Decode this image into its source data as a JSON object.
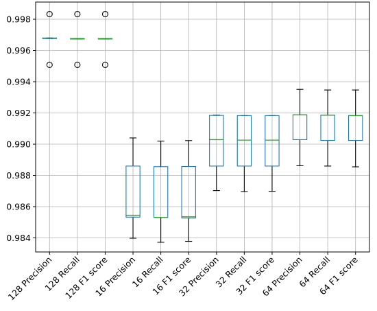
{
  "chart_data": {
    "type": "boxplot",
    "grid": true,
    "ylim": [
      0.9831,
      0.9991
    ],
    "yticks": [
      0.984,
      0.986,
      0.988,
      0.99,
      0.992,
      0.994,
      0.996,
      0.998
    ],
    "ytick_labels": [
      "0.984",
      "0.986",
      "0.988",
      "0.990",
      "0.992",
      "0.994",
      "0.996",
      "0.998"
    ],
    "categories": [
      "128 Precision",
      "128 Recall",
      "128 F1 score",
      "16 Precision",
      "16 Recall",
      "16 F1 score",
      "32 Precision",
      "32 Recall",
      "32 F1 score",
      "64 Precision",
      "64 Recall",
      "64 F1 score"
    ],
    "boxes": [
      {
        "whislo": 0.99676,
        "q1": 0.99676,
        "med": 0.99678,
        "q3": 0.9968,
        "whishi": 0.9968,
        "fliers": [
          0.99833,
          0.99508
        ]
      },
      {
        "whislo": 0.99673,
        "q1": 0.99673,
        "med": 0.99675,
        "q3": 0.99677,
        "whishi": 0.99677,
        "fliers": [
          0.99833,
          0.99508
        ]
      },
      {
        "whislo": 0.99673,
        "q1": 0.99673,
        "med": 0.99675,
        "q3": 0.99677,
        "whishi": 0.99677,
        "fliers": [
          0.99833,
          0.99508
        ]
      },
      {
        "whislo": 0.98398,
        "q1": 0.98533,
        "med": 0.98545,
        "q3": 0.9886,
        "whishi": 0.9904,
        "fliers": []
      },
      {
        "whislo": 0.98372,
        "q1": 0.98531,
        "med": 0.98531,
        "q3": 0.98856,
        "whishi": 0.9902,
        "fliers": []
      },
      {
        "whislo": 0.98378,
        "q1": 0.98527,
        "med": 0.98535,
        "q3": 0.98857,
        "whishi": 0.99023,
        "fliers": []
      },
      {
        "whislo": 0.98703,
        "q1": 0.9886,
        "med": 0.99029,
        "q3": 0.99184,
        "whishi": 0.99186,
        "fliers": []
      },
      {
        "whislo": 0.98696,
        "q1": 0.9886,
        "med": 0.99026,
        "q3": 0.99183,
        "whishi": 0.99183,
        "fliers": []
      },
      {
        "whislo": 0.98698,
        "q1": 0.9886,
        "med": 0.99026,
        "q3": 0.99183,
        "whishi": 0.99183,
        "fliers": []
      },
      {
        "whislo": 0.98862,
        "q1": 0.99029,
        "med": 0.99188,
        "q3": 0.99188,
        "whishi": 0.99351,
        "fliers": []
      },
      {
        "whislo": 0.9886,
        "q1": 0.99024,
        "med": 0.99186,
        "q3": 0.99186,
        "whishi": 0.99347,
        "fliers": []
      },
      {
        "whislo": 0.98855,
        "q1": 0.99024,
        "med": 0.99183,
        "q3": 0.99183,
        "whishi": 0.99347,
        "fliers": []
      }
    ],
    "colors": {
      "box": "#1f77b4",
      "median": "#2ca02c",
      "whisker": "#000000",
      "grid": "#b0b0b0"
    }
  }
}
